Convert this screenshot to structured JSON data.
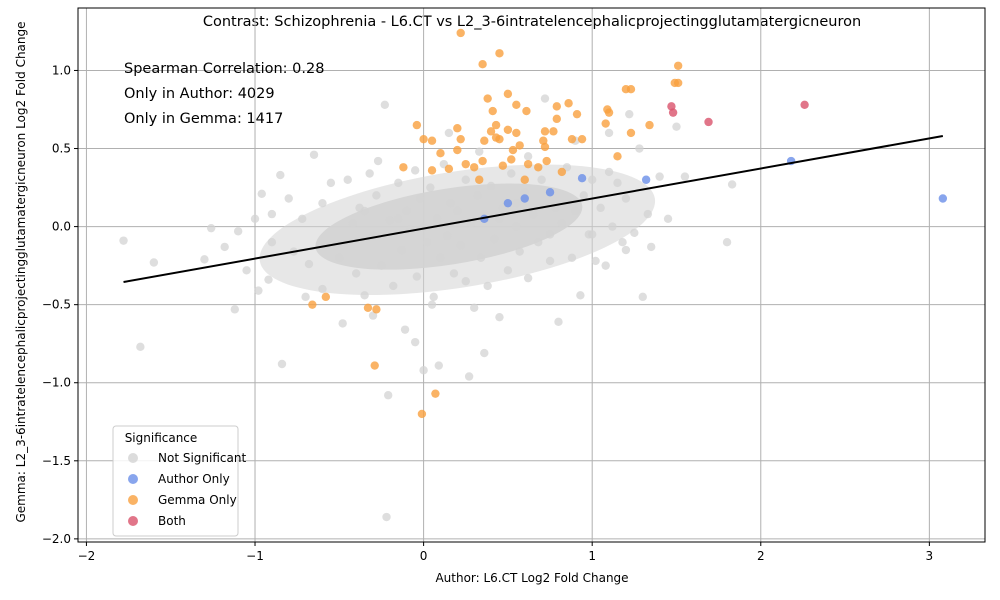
{
  "chart_data": {
    "type": "scatter",
    "title": "Contrast: Schizophrenia - L6.CT vs L2_3-6intratelencephalicprojectingglutamatergicneuron",
    "xlabel": "Author: L6.CT Log2 Fold Change",
    "ylabel": "Gemma: L2_3-6intratelencephalicprojectingglutamatergicneuron Log2 Fold Change",
    "xlim": [
      -2.05,
      3.33
    ],
    "ylim": [
      -2.02,
      1.4
    ],
    "xticks": [
      -2,
      -1,
      0,
      1,
      2,
      3
    ],
    "xtick_labels": [
      "−2",
      "−1",
      "0",
      "1",
      "2",
      "3"
    ],
    "yticks": [
      -2.0,
      -1.5,
      -1.0,
      -0.5,
      0.0,
      0.5,
      1.0
    ],
    "ytick_labels": [
      "−2.0",
      "−1.5",
      "−1.0",
      "−0.5",
      "0.0",
      "0.5",
      "1.0"
    ],
    "grid": true,
    "annotations": [
      "Spearman Correlation: 0.28",
      "Only in Author: 4029",
      "Only in Gemma: 1417"
    ],
    "legend": {
      "title": "Significance",
      "placement": "lower-left",
      "entries": [
        {
          "label": "Not Significant",
          "color": "#d3d3d3"
        },
        {
          "label": "Author Only",
          "color": "#6a8ee8"
        },
        {
          "label": "Gemma Only",
          "color": "#f9a03f"
        },
        {
          "label": "Both",
          "color": "#d9536b"
        }
      ]
    },
    "regression_line": {
      "x": [
        -1.78,
        3.08
      ],
      "y": [
        -0.355,
        0.58
      ],
      "color": "#000000"
    },
    "series": [
      {
        "name": "Not Significant",
        "color": "#d3d3d3",
        "points": [
          [
            -1.78,
            -0.09
          ],
          [
            -1.68,
            -0.77
          ],
          [
            -1.6,
            -0.23
          ],
          [
            -1.3,
            -0.21
          ],
          [
            -1.26,
            -0.01
          ],
          [
            -1.18,
            -0.13
          ],
          [
            -1.12,
            -0.53
          ],
          [
            -1.1,
            -0.03
          ],
          [
            -1.05,
            -0.28
          ],
          [
            -1.0,
            0.05
          ],
          [
            -0.98,
            -0.41
          ],
          [
            -0.96,
            0.21
          ],
          [
            -0.92,
            -0.34
          ],
          [
            -0.9,
            0.08
          ],
          [
            -0.85,
            0.33
          ],
          [
            -0.84,
            -0.88
          ],
          [
            -0.8,
            0.18
          ],
          [
            -0.77,
            -0.16
          ],
          [
            -0.72,
            0.05
          ],
          [
            -0.68,
            -0.24
          ],
          [
            -0.65,
            0.46
          ],
          [
            -0.6,
            -0.4
          ],
          [
            -0.55,
            0.28
          ],
          [
            -0.52,
            -0.12
          ],
          [
            -0.48,
            -0.62
          ],
          [
            -0.45,
            0.3
          ],
          [
            -0.42,
            0.02
          ],
          [
            -0.4,
            -0.3
          ],
          [
            -0.38,
            0.12
          ],
          [
            -0.35,
            -0.44
          ],
          [
            -0.32,
            0.34
          ],
          [
            -0.3,
            -0.06
          ],
          [
            -0.28,
            0.2
          ],
          [
            -0.25,
            -0.25
          ],
          [
            -0.23,
            0.78
          ],
          [
            -0.21,
            -1.08
          ],
          [
            -0.2,
            0.04
          ],
          [
            -0.18,
            -0.38
          ],
          [
            -0.15,
            0.28
          ],
          [
            -0.13,
            -0.15
          ],
          [
            -0.11,
            -0.66
          ],
          [
            -0.1,
            0.1
          ],
          [
            -0.08,
            -0.02
          ],
          [
            -0.05,
            0.36
          ],
          [
            -0.04,
            -0.32
          ],
          [
            -0.02,
            0.18
          ],
          [
            0.0,
            -0.92
          ],
          [
            0.0,
            0.0
          ],
          [
            0.02,
            -0.1
          ],
          [
            0.04,
            0.25
          ],
          [
            0.06,
            -0.45
          ],
          [
            0.08,
            0.05
          ],
          [
            0.09,
            -0.89
          ],
          [
            0.1,
            -0.2
          ],
          [
            0.12,
            0.4
          ],
          [
            0.14,
            -0.06
          ],
          [
            0.16,
            0.15
          ],
          [
            0.18,
            -0.3
          ],
          [
            0.2,
            0.1
          ],
          [
            0.22,
            -0.12
          ],
          [
            0.25,
            0.3
          ],
          [
            0.27,
            -0.96
          ],
          [
            0.28,
            0.02
          ],
          [
            0.3,
            -0.52
          ],
          [
            0.32,
            0.2
          ],
          [
            0.34,
            -0.2
          ],
          [
            0.36,
            0.08
          ],
          [
            0.38,
            -0.38
          ],
          [
            0.4,
            0.26
          ],
          [
            0.42,
            -0.08
          ],
          [
            0.45,
            -0.58
          ],
          [
            0.47,
            0.12
          ],
          [
            0.5,
            -0.28
          ],
          [
            0.52,
            0.34
          ],
          [
            0.55,
            0.0
          ],
          [
            0.57,
            -0.16
          ],
          [
            0.6,
            0.22
          ],
          [
            0.62,
            -0.33
          ],
          [
            0.65,
            0.08
          ],
          [
            0.68,
            -0.1
          ],
          [
            0.7,
            0.3
          ],
          [
            0.72,
            0.82
          ],
          [
            0.75,
            -0.22
          ],
          [
            0.78,
            0.12
          ],
          [
            0.8,
            -0.61
          ],
          [
            0.82,
            0.02
          ],
          [
            0.85,
            0.38
          ],
          [
            0.88,
            -0.2
          ],
          [
            0.9,
            0.1
          ],
          [
            0.93,
            -0.44
          ],
          [
            0.95,
            0.2
          ],
          [
            0.98,
            -0.05
          ],
          [
            1.0,
            0.3
          ],
          [
            1.02,
            -0.22
          ],
          [
            1.05,
            0.12
          ],
          [
            1.08,
            -0.25
          ],
          [
            1.1,
            0.6
          ],
          [
            1.12,
            0.0
          ],
          [
            1.15,
            0.28
          ],
          [
            1.18,
            -0.1
          ],
          [
            1.2,
            0.18
          ],
          [
            1.22,
            0.72
          ],
          [
            1.25,
            -0.04
          ],
          [
            1.28,
            0.5
          ],
          [
            1.3,
            -0.45
          ],
          [
            1.33,
            0.08
          ],
          [
            1.35,
            -0.13
          ],
          [
            1.4,
            0.32
          ],
          [
            1.45,
            0.05
          ],
          [
            1.5,
            0.64
          ],
          [
            1.55,
            0.32
          ],
          [
            1.8,
            -0.1
          ],
          [
            1.83,
            0.27
          ],
          [
            -0.22,
            -1.86
          ],
          [
            -0.3,
            -0.57
          ],
          [
            0.36,
            -0.81
          ],
          [
            -0.05,
            -0.74
          ],
          [
            0.62,
            0.45
          ],
          [
            -0.6,
            0.15
          ],
          [
            -0.7,
            -0.45
          ],
          [
            0.15,
            0.6
          ],
          [
            0.9,
            0.55
          ],
          [
            1.0,
            -0.05
          ],
          [
            -0.35,
            0.1
          ],
          [
            0.05,
            -0.5
          ],
          [
            0.45,
            0.05
          ],
          [
            -0.15,
            0.05
          ],
          [
            0.25,
            -0.35
          ],
          [
            0.55,
            0.15
          ],
          [
            0.75,
            -0.05
          ],
          [
            -0.5,
            -0.2
          ],
          [
            -0.9,
            -0.1
          ],
          [
            1.1,
            0.35
          ],
          [
            1.2,
            -0.15
          ],
          [
            0.33,
            0.48
          ],
          [
            -0.27,
            0.42
          ]
        ]
      },
      {
        "name": "Author Only",
        "color": "#6a8ee8",
        "points": [
          [
            0.36,
            0.05
          ],
          [
            0.5,
            0.15
          ],
          [
            0.6,
            0.18
          ],
          [
            0.75,
            0.22
          ],
          [
            0.94,
            0.31
          ],
          [
            1.32,
            0.3
          ],
          [
            2.18,
            0.42
          ],
          [
            3.08,
            0.18
          ]
        ]
      },
      {
        "name": "Gemma Only",
        "color": "#f9a03f",
        "points": [
          [
            0.22,
            1.24
          ],
          [
            0.45,
            1.11
          ],
          [
            0.35,
            1.04
          ],
          [
            1.51,
            1.03
          ],
          [
            1.49,
            0.92
          ],
          [
            1.51,
            0.92
          ],
          [
            1.2,
            0.88
          ],
          [
            1.23,
            0.88
          ],
          [
            0.5,
            0.85
          ],
          [
            0.38,
            0.82
          ],
          [
            0.86,
            0.79
          ],
          [
            0.55,
            0.78
          ],
          [
            0.79,
            0.77
          ],
          [
            1.09,
            0.75
          ],
          [
            0.41,
            0.74
          ],
          [
            0.61,
            0.74
          ],
          [
            1.1,
            0.73
          ],
          [
            0.91,
            0.72
          ],
          [
            0.79,
            0.69
          ],
          [
            1.08,
            0.66
          ],
          [
            1.34,
            0.65
          ],
          [
            -0.04,
            0.65
          ],
          [
            0.2,
            0.63
          ],
          [
            0.43,
            0.65
          ],
          [
            0.5,
            0.62
          ],
          [
            0.72,
            0.61
          ],
          [
            0.77,
            0.61
          ],
          [
            0.4,
            0.61
          ],
          [
            0.55,
            0.6
          ],
          [
            1.23,
            0.6
          ],
          [
            0.43,
            0.57
          ],
          [
            0.45,
            0.56
          ],
          [
            0.36,
            0.55
          ],
          [
            0.88,
            0.56
          ],
          [
            0.94,
            0.56
          ],
          [
            0.0,
            0.56
          ],
          [
            0.05,
            0.55
          ],
          [
            0.22,
            0.56
          ],
          [
            0.71,
            0.55
          ],
          [
            0.57,
            0.52
          ],
          [
            0.72,
            0.51
          ],
          [
            0.53,
            0.49
          ],
          [
            0.2,
            0.49
          ],
          [
            0.1,
            0.47
          ],
          [
            1.15,
            0.45
          ],
          [
            0.35,
            0.42
          ],
          [
            0.52,
            0.43
          ],
          [
            0.73,
            0.42
          ],
          [
            0.62,
            0.4
          ],
          [
            0.47,
            0.39
          ],
          [
            0.3,
            0.38
          ],
          [
            0.15,
            0.37
          ],
          [
            -0.12,
            0.38
          ],
          [
            0.05,
            0.36
          ],
          [
            0.82,
            0.35
          ],
          [
            0.6,
            0.3
          ],
          [
            0.33,
            0.3
          ],
          [
            -0.28,
            -0.53
          ],
          [
            -0.29,
            -0.89
          ],
          [
            0.07,
            -1.07
          ],
          [
            -0.01,
            -1.2
          ],
          [
            -0.66,
            -0.5
          ],
          [
            -0.58,
            -0.45
          ],
          [
            -0.33,
            -0.52
          ],
          [
            0.25,
            0.4
          ],
          [
            0.68,
            0.38
          ]
        ]
      },
      {
        "name": "Both",
        "color": "#d9536b",
        "points": [
          [
            2.26,
            0.78
          ],
          [
            1.47,
            0.77
          ],
          [
            1.48,
            0.73
          ],
          [
            1.69,
            0.67
          ]
        ]
      }
    ]
  }
}
